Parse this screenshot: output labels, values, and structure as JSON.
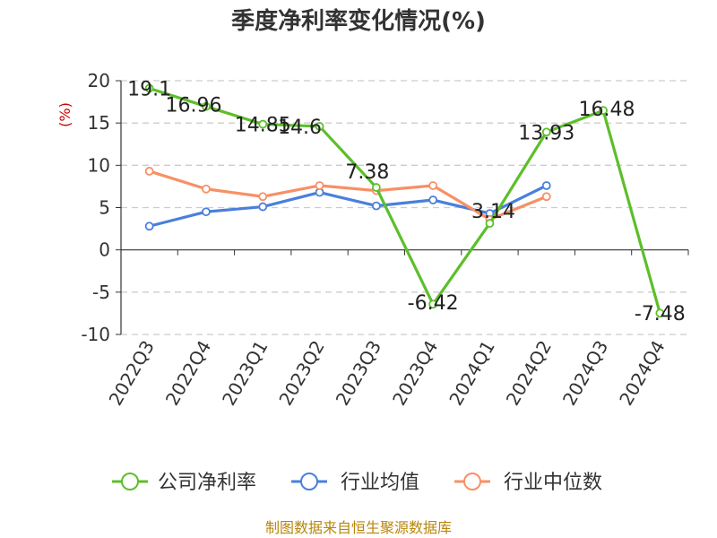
{
  "chart_data": {
    "type": "line",
    "title": "季度净利率变化情况(%)",
    "ylabel": "(%)",
    "categories": [
      "2022Q3",
      "2022Q4",
      "2023Q1",
      "2023Q2",
      "2023Q3",
      "2023Q4",
      "2024Q1",
      "2024Q2",
      "2024Q3",
      "2024Q4"
    ],
    "ylim": [
      -10,
      20
    ],
    "yticks": [
      20,
      15,
      10,
      5,
      0,
      -5,
      -10
    ],
    "grid": true,
    "legend_position": "bottom",
    "series": [
      {
        "name": "公司净利率",
        "color": "#5cbf2a",
        "values": [
          19.1,
          16.96,
          14.85,
          14.6,
          7.38,
          -6.42,
          3.14,
          13.93,
          16.48,
          -7.48
        ],
        "labels": [
          "19.1",
          "16.96",
          "14.85",
          "14.6",
          "7.38",
          "-6.42",
          "3.14",
          "13.93",
          "16.48",
          "-7.48"
        ]
      },
      {
        "name": "行业均值",
        "color": "#4a7fdc",
        "values": [
          2.8,
          4.5,
          5.1,
          6.8,
          5.2,
          5.9,
          4.3,
          7.6,
          null,
          null
        ]
      },
      {
        "name": "行业中位数",
        "color": "#f79065",
        "values": [
          9.3,
          7.2,
          6.3,
          7.6,
          7.0,
          7.6,
          3.6,
          6.3,
          null,
          null
        ]
      }
    ]
  },
  "source": "制图数据来自恒生聚源数据库"
}
